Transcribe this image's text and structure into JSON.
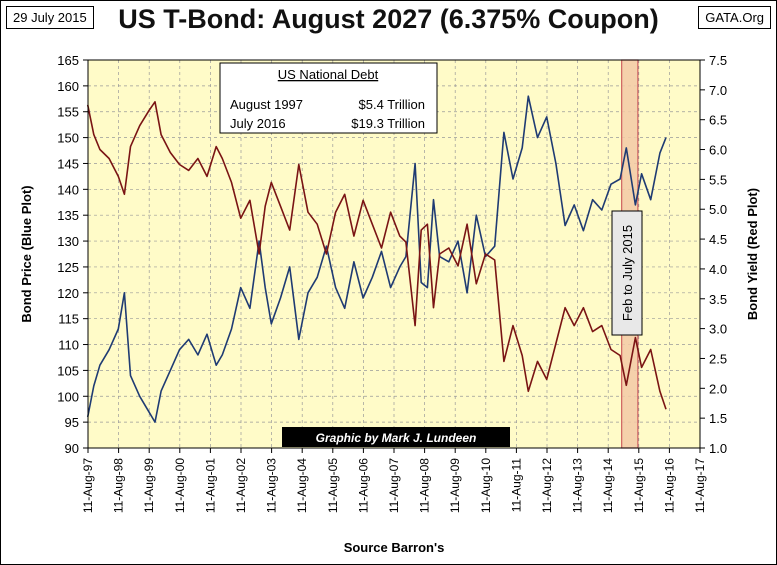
{
  "date_label": "29 July 2015",
  "source_label": "GATA.Org",
  "chart_data": {
    "type": "line",
    "title": "US T-Bond: August 2027 (6.375% Coupon)",
    "xlabel": "Source Barron's",
    "ylabel_left": "Bond Price  (Blue Plot)",
    "ylabel_right": "Bond Yield  (Red Plot)",
    "x_ticks": [
      "11-Aug-97",
      "11-Aug-98",
      "11-Aug-99",
      "11-Aug-00",
      "11-Aug-01",
      "11-Aug-02",
      "11-Aug-03",
      "11-Aug-04",
      "11-Aug-05",
      "11-Aug-06",
      "11-Aug-07",
      "11-Aug-08",
      "11-Aug-09",
      "11-Aug-10",
      "11-Aug-11",
      "11-Aug-12",
      "11-Aug-13",
      "11-Aug-14",
      "11-Aug-15",
      "11-Aug-16",
      "11-Aug-17"
    ],
    "xlim": [
      1997.61,
      2017.61
    ],
    "ylim_left": [
      90,
      165
    ],
    "y_ticks_left": [
      90,
      95,
      100,
      105,
      110,
      115,
      120,
      125,
      130,
      135,
      140,
      145,
      150,
      155,
      160,
      165
    ],
    "ylim_right": [
      1.0,
      7.5
    ],
    "y_ticks_right": [
      "1.0",
      "1.5",
      "2.0",
      "2.5",
      "3.0",
      "3.5",
      "4.0",
      "4.5",
      "5.0",
      "5.5",
      "6.0",
      "6.5",
      "7.0",
      "7.5"
    ],
    "grid": true,
    "series": [
      {
        "name": "Bond Price",
        "axis": "left",
        "color": "#1f3b73",
        "x": [
          1997.6,
          1997.8,
          1998.0,
          1998.3,
          1998.6,
          1998.8,
          1999.0,
          1999.3,
          1999.6,
          1999.8,
          2000.0,
          2000.3,
          2000.6,
          2000.9,
          2001.2,
          2001.5,
          2001.8,
          2002.0,
          2002.3,
          2002.6,
          2002.9,
          2003.2,
          2003.4,
          2003.6,
          2003.9,
          2004.2,
          2004.5,
          2004.8,
          2005.1,
          2005.4,
          2005.7,
          2006.0,
          2006.3,
          2006.6,
          2006.9,
          2007.2,
          2007.5,
          2007.8,
          2008.0,
          2008.3,
          2008.5,
          2008.7,
          2008.9,
          2009.1,
          2009.4,
          2009.7,
          2010.0,
          2010.3,
          2010.6,
          2010.9,
          2011.2,
          2011.5,
          2011.8,
          2012.0,
          2012.3,
          2012.6,
          2012.9,
          2013.2,
          2013.5,
          2013.8,
          2014.1,
          2014.4,
          2014.7,
          2015.0,
          2015.2,
          2015.5,
          2015.7,
          2016.0,
          2016.3,
          2016.5
        ],
        "y": [
          96,
          102,
          106,
          109,
          113,
          120,
          104,
          100,
          97,
          95,
          101,
          105,
          109,
          111,
          108,
          112,
          106,
          108,
          113,
          121,
          117,
          130,
          121,
          114,
          119,
          125,
          111,
          120,
          123,
          129,
          121,
          117,
          126,
          119,
          123,
          128,
          121,
          125,
          127,
          145,
          122,
          121,
          138,
          127,
          126,
          130,
          120,
          135,
          127,
          129,
          151,
          142,
          148,
          158,
          150,
          154,
          145,
          133,
          137,
          132,
          138,
          136,
          141,
          142,
          148,
          137,
          143,
          138,
          147,
          150
        ]
      },
      {
        "name": "Bond Yield",
        "axis": "right",
        "color": "#7a1414",
        "x": [
          1997.6,
          1997.8,
          1998.0,
          1998.3,
          1998.6,
          1998.8,
          1999.0,
          1999.3,
          1999.6,
          1999.8,
          2000.0,
          2000.3,
          2000.6,
          2000.9,
          2001.2,
          2001.5,
          2001.8,
          2002.0,
          2002.3,
          2002.6,
          2002.9,
          2003.2,
          2003.4,
          2003.6,
          2003.9,
          2004.2,
          2004.5,
          2004.8,
          2005.1,
          2005.4,
          2005.7,
          2006.0,
          2006.3,
          2006.6,
          2006.9,
          2007.2,
          2007.5,
          2007.8,
          2008.0,
          2008.3,
          2008.5,
          2008.7,
          2008.9,
          2009.1,
          2009.4,
          2009.7,
          2010.0,
          2010.3,
          2010.6,
          2010.9,
          2011.2,
          2011.5,
          2011.8,
          2012.0,
          2012.3,
          2012.6,
          2012.9,
          2013.2,
          2013.5,
          2013.8,
          2014.1,
          2014.4,
          2014.7,
          2015.0,
          2015.2,
          2015.5,
          2015.7,
          2016.0,
          2016.3,
          2016.5
        ],
        "y": [
          6.75,
          6.25,
          6.0,
          5.85,
          5.55,
          5.25,
          6.05,
          6.4,
          6.65,
          6.8,
          6.25,
          5.95,
          5.75,
          5.65,
          5.85,
          5.55,
          6.05,
          5.85,
          5.45,
          4.85,
          5.15,
          4.25,
          5.05,
          5.45,
          5.05,
          4.65,
          5.75,
          4.95,
          4.75,
          4.25,
          4.95,
          5.25,
          4.55,
          5.15,
          4.75,
          4.35,
          4.95,
          4.55,
          4.45,
          3.05,
          4.65,
          4.75,
          3.35,
          4.25,
          4.35,
          4.05,
          4.75,
          3.75,
          4.25,
          4.15,
          2.45,
          3.05,
          2.55,
          1.95,
          2.45,
          2.15,
          2.75,
          3.35,
          3.05,
          3.35,
          2.95,
          3.05,
          2.65,
          2.55,
          2.05,
          2.85,
          2.35,
          2.65,
          1.95,
          1.65
        ]
      }
    ],
    "annotations": {
      "debt_box_title": "US National Debt",
      "debt_rows": [
        {
          "label": "August 1997",
          "value": "$5.4 Trillion"
        },
        {
          "label": "July 2016",
          "value": "$19.3 Trillion"
        }
      ],
      "credit": "Graphic by Mark J. Lundeen",
      "highlight_label": "Feb to  July 2015",
      "highlight_range": [
        2015.05,
        2015.58
      ]
    },
    "colors": {
      "plot_bg": "#fffbc8",
      "price": "#1f3b73",
      "yield": "#7a1414",
      "highlight_fill": "#f3c9a6",
      "highlight_edge": "#d06060"
    }
  }
}
